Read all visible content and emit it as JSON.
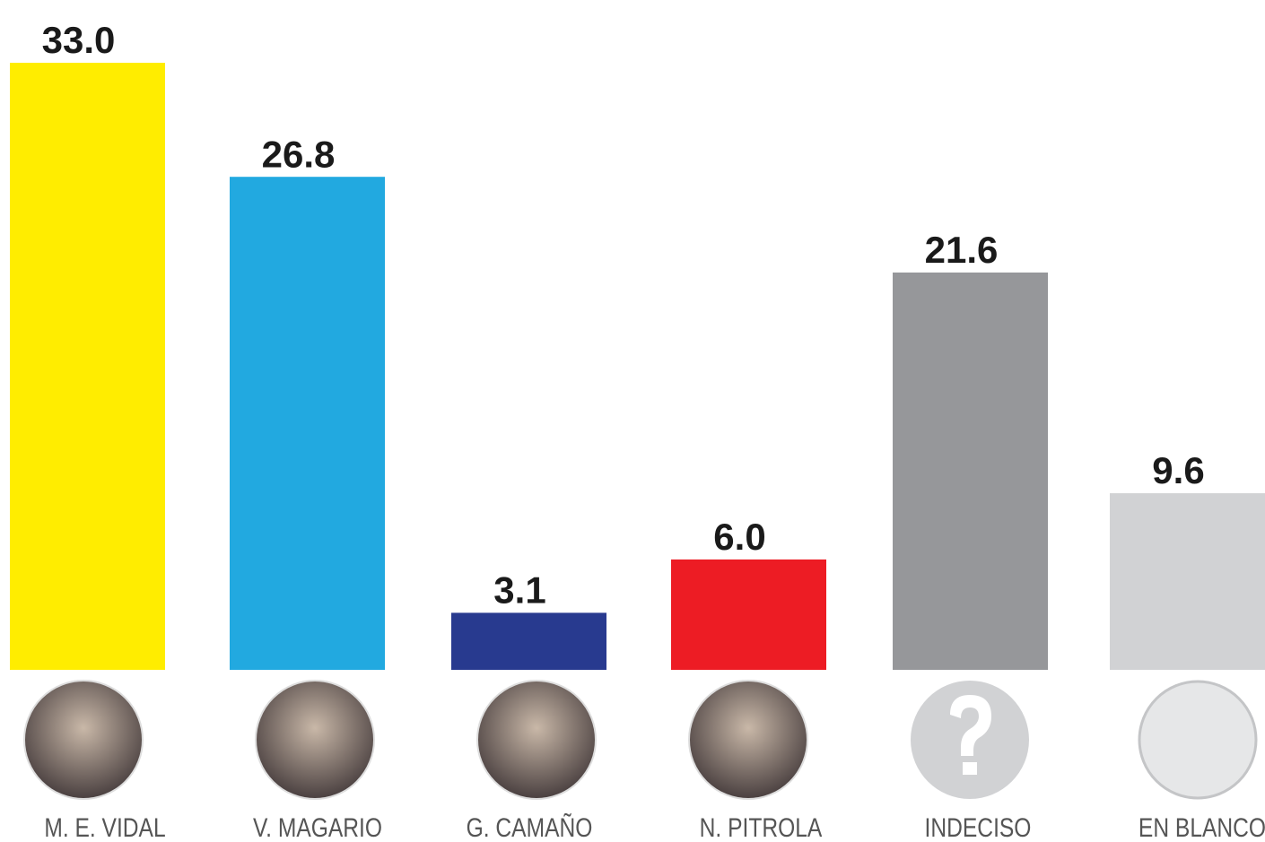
{
  "chart_data": {
    "type": "bar",
    "categories": [
      "M. E. VIDAL",
      "V. MAGARIO",
      "G. CAMAÑO",
      "N. PITROLA",
      "INDECISO",
      "EN BLANCO"
    ],
    "values": [
      33.0,
      26.8,
      3.1,
      6.0,
      21.6,
      9.6
    ],
    "value_labels": [
      "33.0",
      "26.8",
      "3.1",
      "6.0",
      "21.6",
      "9.6"
    ],
    "colors": [
      "#ffed00",
      "#22a9e0",
      "#283a8f",
      "#ed1c24",
      "#96979a",
      "#d1d2d4"
    ]
  }
}
